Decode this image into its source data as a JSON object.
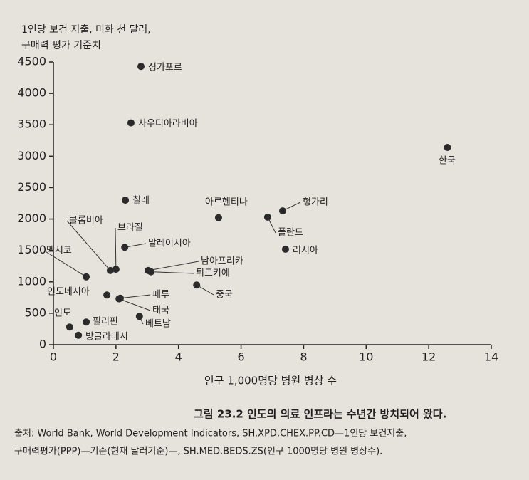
{
  "chart_data": {
    "type": "scatter",
    "y_label": [
      "1인당 보건 지출, 미화 천 달러,",
      "구매력 평가 기준치"
    ],
    "x_label": "인구 1,000명당 병원 병상 수",
    "caption": "그림 23.2 인도의 의료 인프라는 수년간 방치되어 왔다.",
    "source": [
      "출처: World Bank, World Development Indicators, SH.XPD.CHEX.PP.CD—1인당 보건지출,",
      "구매력평가(PPP)—기준(현재 달러기준)—,  SH.MED.BEDS.ZS(인구 1000명당 병원 병상수)."
    ],
    "labels": [
      "싱가포르",
      "사우디아라비아",
      "한국",
      "칠레",
      "아르헨티나",
      "헝가리",
      "폴란드",
      "러시아",
      "콜롬비아",
      "브라질",
      "말레이시아",
      "멕시코",
      "남아프리카",
      "튀르키예",
      "중국",
      "인도네시아",
      "페루",
      "태국",
      "베트남",
      "인도",
      "필리핀",
      "방글라데시"
    ],
    "x": [
      2.8,
      2.48,
      12.6,
      2.3,
      5.28,
      7.33,
      6.85,
      7.42,
      1.82,
      2.0,
      2.28,
      1.05,
      3.03,
      3.12,
      4.58,
      1.71,
      2.14,
      2.1,
      2.75,
      0.52,
      1.05,
      0.8
    ],
    "values": [
      4430,
      3530,
      3140,
      2300,
      2020,
      2130,
      2030,
      1520,
      1180,
      1200,
      1550,
      1080,
      1180,
      1160,
      950,
      790,
      740,
      730,
      450,
      280,
      360,
      150
    ],
    "color": "#2b2b2b",
    "xlim": [
      0,
      14
    ],
    "xticks": [
      0,
      2,
      4,
      6,
      8,
      10,
      12,
      14
    ],
    "ylim": [
      0,
      4500
    ],
    "yticks": [
      0,
      500,
      1000,
      1500,
      2000,
      2500,
      3000,
      3500,
      4000,
      4500
    ]
  }
}
